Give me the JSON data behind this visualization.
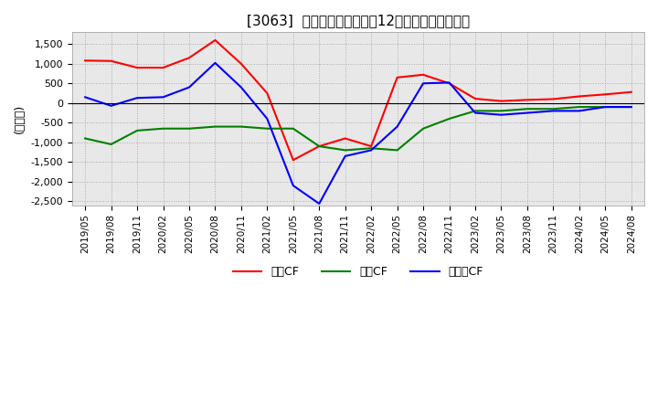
{
  "title": "[3063]  キャッシュフローの12か月移動合計の推移",
  "ylabel": "(百万円)",
  "ylim": [
    -2600,
    1800
  ],
  "yticks": [
    -2500,
    -2000,
    -1500,
    -1000,
    -500,
    0,
    500,
    1000,
    1500
  ],
  "legend_labels": [
    "営業CF",
    "投賄CF",
    "フリーCF"
  ],
  "colors": [
    "#ff0000",
    "#008000",
    "#0000ff"
  ],
  "plot_bg": "#e8e8e8",
  "grid_color": "#ffffff",
  "dates": [
    "2019/05",
    "2019/08",
    "2019/11",
    "2020/02",
    "2020/05",
    "2020/08",
    "2020/11",
    "2021/02",
    "2021/05",
    "2021/08",
    "2021/11",
    "2022/02",
    "2022/05",
    "2022/08",
    "2022/11",
    "2023/02",
    "2023/05",
    "2023/08",
    "2023/11",
    "2024/02",
    "2024/05",
    "2024/08"
  ],
  "operating_cf": [
    1080,
    1070,
    900,
    900,
    1150,
    1600,
    1000,
    250,
    -1450,
    -1100,
    -900,
    -1100,
    650,
    720,
    500,
    110,
    50,
    80,
    100,
    170,
    220,
    280
  ],
  "investing_cf": [
    -900,
    -1050,
    -700,
    -650,
    -650,
    -600,
    -600,
    -650,
    -650,
    -1100,
    -1200,
    -1150,
    -1200,
    -650,
    -400,
    -200,
    -200,
    -150,
    -150,
    -100,
    -100,
    -100
  ],
  "free_cf": [
    150,
    -70,
    130,
    150,
    400,
    1020,
    400,
    -400,
    -2100,
    -2560,
    -1350,
    -1200,
    -600,
    500,
    520,
    -250,
    -300,
    -250,
    -200,
    -200,
    -100,
    -100
  ]
}
